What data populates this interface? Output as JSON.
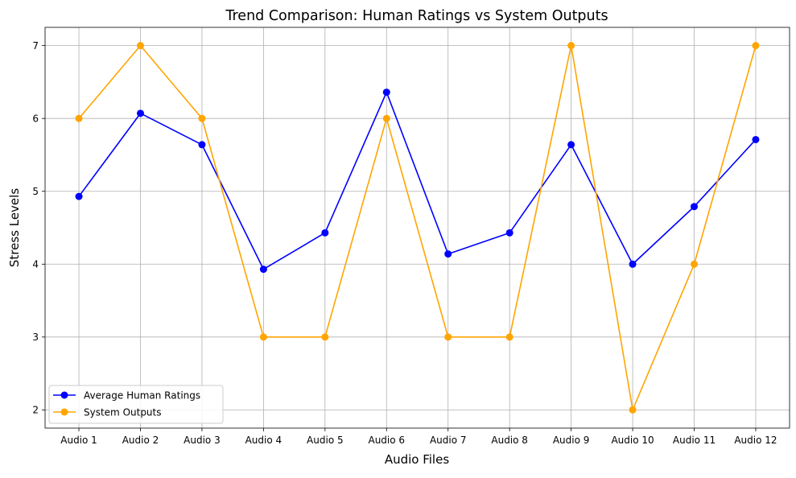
{
  "chart_data": {
    "type": "line",
    "title": "Trend Comparison: Human Ratings vs System Outputs",
    "xlabel": "Audio Files",
    "ylabel": "Stress Levels",
    "categories": [
      "Audio 1",
      "Audio 2",
      "Audio 3",
      "Audio 4",
      "Audio 5",
      "Audio 6",
      "Audio 7",
      "Audio 8",
      "Audio 9",
      "Audio 10",
      "Audio 11",
      "Audio 12"
    ],
    "series": [
      {
        "name": "Average Human Ratings",
        "color": "#0000ff",
        "marker": "circle",
        "values": [
          4.93,
          6.07,
          5.64,
          3.93,
          4.43,
          6.36,
          4.14,
          4.43,
          5.64,
          4.0,
          4.79,
          5.71
        ]
      },
      {
        "name": "System Outputs",
        "color": "#ffa500",
        "marker": "circle",
        "values": [
          6,
          7,
          6,
          3,
          3,
          6,
          3,
          3,
          7,
          2,
          4,
          7
        ]
      }
    ],
    "ylim": [
      1.75,
      7.25
    ],
    "yticks": [
      "2",
      "3",
      "4",
      "5",
      "6",
      "7"
    ],
    "grid": true,
    "legend": "lower-left"
  }
}
